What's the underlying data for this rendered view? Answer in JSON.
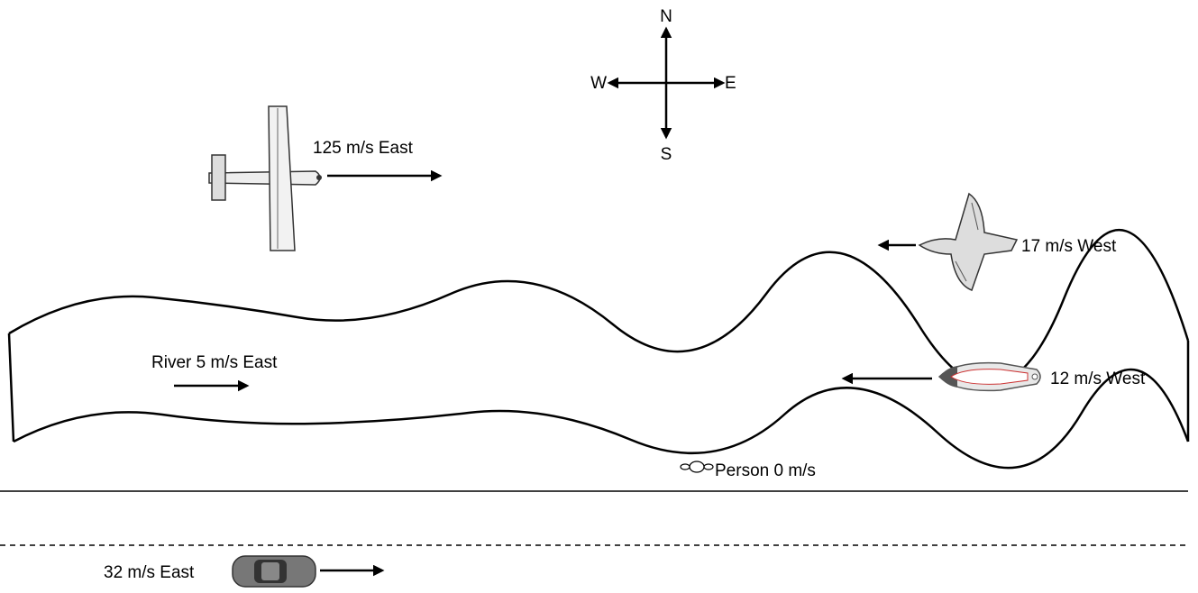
{
  "compass": {
    "north": "N",
    "east": "E",
    "south": "S",
    "west": "W"
  },
  "plane": {
    "label": "125 m/s East"
  },
  "bird": {
    "label": "17 m/s West"
  },
  "river": {
    "label": "River 5 m/s East"
  },
  "boat": {
    "label": "12 m/s West"
  },
  "person": {
    "label": "Person 0 m/s"
  },
  "car": {
    "label": "32 m/s East"
  }
}
